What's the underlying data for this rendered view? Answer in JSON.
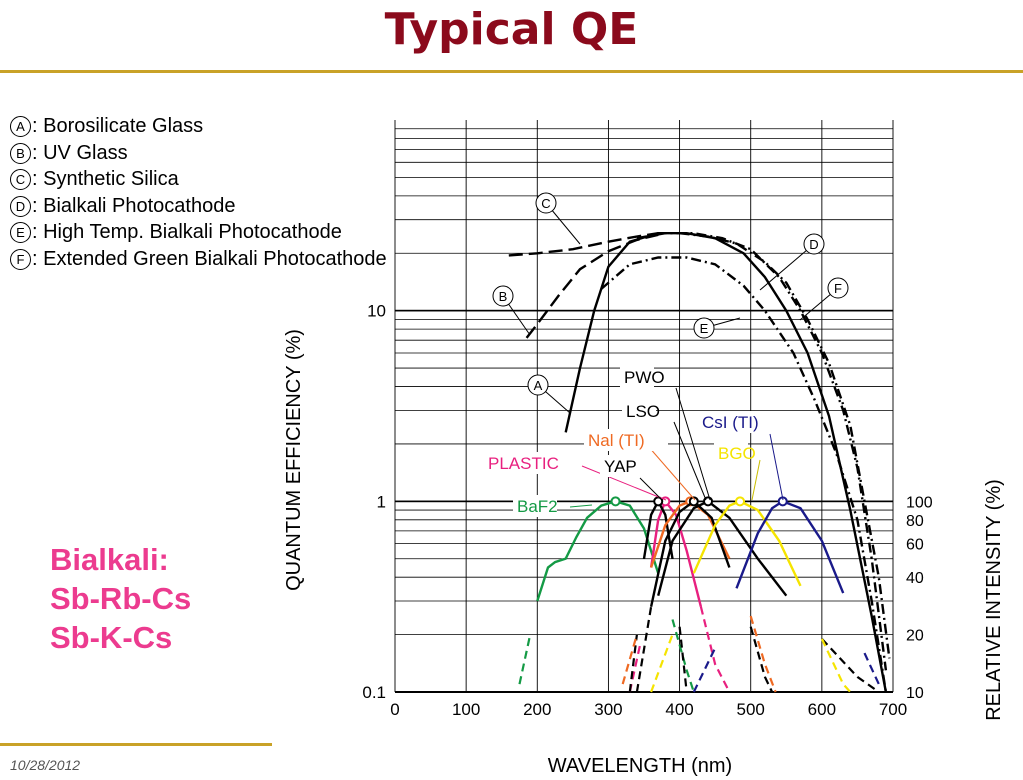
{
  "slide": {
    "title": "Typical QE",
    "date": "10/28/2012",
    "photocathode_lines": [
      "Bialkali:",
      "Sb-Rb-Cs",
      "Sb-K-Cs"
    ]
  },
  "legend": [
    {
      "mark": "A",
      "text": ": Borosilicate Glass"
    },
    {
      "mark": "B",
      "text": ": UV Glass"
    },
    {
      "mark": "C",
      "text": ": Synthetic Silica"
    },
    {
      "mark": "D",
      "text": ": Bialkali Photocathode"
    },
    {
      "mark": "E",
      "text": ": High Temp. Bialkali Photocathode"
    },
    {
      "mark": "F",
      "text": ": Extended Green Bialkali Photocathode"
    }
  ],
  "chart_data": {
    "type": "line",
    "xlabel": "WAVELENGTH (nm)",
    "ylabel": "QUANTUM EFFICIENCY (%)",
    "y2label": "RELATIVE INTENSITY (%)",
    "xlim": [
      0,
      700
    ],
    "ylim": [
      0.1,
      100
    ],
    "yscale": "log",
    "x_ticks": [
      0,
      100,
      200,
      300,
      400,
      500,
      600,
      700
    ],
    "y_tick_labels": [
      "0.1",
      "1",
      "10"
    ],
    "y2_tick_labels": [
      "10",
      "20",
      "40",
      "60",
      "80",
      "100"
    ],
    "grid": true,
    "qe_curves": [
      {
        "label": "A",
        "style": "solid",
        "points": [
          [
            240,
            2.3
          ],
          [
            260,
            5
          ],
          [
            280,
            10
          ],
          [
            300,
            17
          ],
          [
            330,
            23
          ],
          [
            370,
            25.5
          ],
          [
            410,
            25.5
          ],
          [
            450,
            24
          ],
          [
            490,
            20
          ],
          [
            520,
            15
          ],
          [
            550,
            10
          ],
          [
            580,
            6
          ],
          [
            610,
            2.8
          ],
          [
            640,
            0.9
          ],
          [
            670,
            0.25
          ],
          [
            690,
            0.1
          ]
        ]
      },
      {
        "label": "B",
        "style": "long-dash",
        "points": [
          [
            185,
            7.2
          ],
          [
            200,
            8.5
          ],
          [
            230,
            12
          ],
          [
            260,
            16.5
          ],
          [
            300,
            20.5
          ],
          [
            340,
            23.5
          ],
          [
            370,
            25
          ]
        ]
      },
      {
        "label": "C",
        "style": "long-dash",
        "points": [
          [
            160,
            19.5
          ],
          [
            200,
            20
          ],
          [
            250,
            21
          ],
          [
            300,
            23
          ],
          [
            340,
            24.5
          ],
          [
            370,
            25.5
          ]
        ]
      },
      {
        "label": "D",
        "style": "dash-dot",
        "points": [
          [
            340,
            24
          ],
          [
            380,
            25.5
          ],
          [
            420,
            25.5
          ],
          [
            460,
            24
          ],
          [
            500,
            21
          ],
          [
            540,
            15
          ],
          [
            570,
            10
          ],
          [
            600,
            6
          ],
          [
            630,
            3
          ],
          [
            650,
            1.5
          ],
          [
            670,
            0.5
          ],
          [
            690,
            0.13
          ]
        ]
      },
      {
        "label": "E",
        "style": "dash-dot",
        "points": [
          [
            290,
            13
          ],
          [
            330,
            17.5
          ],
          [
            370,
            19
          ],
          [
            410,
            19
          ],
          [
            450,
            17.5
          ],
          [
            490,
            13.5
          ],
          [
            520,
            10
          ],
          [
            560,
            6
          ],
          [
            590,
            3.4
          ],
          [
            620,
            1.8
          ],
          [
            650,
            0.8
          ],
          [
            670,
            0.3
          ],
          [
            690,
            0.1
          ]
        ]
      },
      {
        "label": "F",
        "style": "dash-dot",
        "points": [
          [
            400,
            25.5
          ],
          [
            440,
            24.5
          ],
          [
            480,
            22.5
          ],
          [
            520,
            18
          ],
          [
            550,
            14
          ],
          [
            580,
            9
          ],
          [
            610,
            5.3
          ],
          [
            640,
            2.5
          ],
          [
            660,
            1
          ],
          [
            680,
            0.4
          ],
          [
            695,
            0.15
          ]
        ]
      }
    ],
    "scintillators": [
      {
        "name": "BaF2",
        "color": "#149a45",
        "peak_nm": 310,
        "points": [
          [
            175,
            0.11
          ],
          [
            190,
            0.2
          ],
          [
            200,
            0.3
          ],
          [
            215,
            0.45
          ],
          [
            225,
            0.48
          ],
          [
            240,
            0.5
          ],
          [
            255,
            0.65
          ],
          [
            270,
            0.82
          ],
          [
            290,
            0.95
          ],
          [
            310,
            1
          ],
          [
            330,
            0.95
          ],
          [
            350,
            0.72
          ],
          [
            370,
            0.42
          ],
          [
            390,
            0.24
          ],
          [
            410,
            0.13
          ],
          [
            420,
            0.1
          ]
        ]
      },
      {
        "name": "PLASTIC",
        "color": "#e8207f",
        "peak_nm": 380,
        "points": [
          [
            330,
            0.1
          ],
          [
            345,
            0.18
          ],
          [
            360,
            0.45
          ],
          [
            370,
            0.8
          ],
          [
            380,
            1
          ],
          [
            395,
            0.85
          ],
          [
            410,
            0.55
          ],
          [
            430,
            0.28
          ],
          [
            450,
            0.14
          ],
          [
            470,
            0.1
          ]
        ]
      },
      {
        "name": "YAP",
        "color": "#000000",
        "peak_nm": 370,
        "points": [
          [
            330,
            0.1
          ],
          [
            340,
            0.2
          ],
          [
            350,
            0.5
          ],
          [
            360,
            0.85
          ],
          [
            370,
            1
          ],
          [
            380,
            0.85
          ],
          [
            390,
            0.5
          ],
          [
            400,
            0.22
          ],
          [
            410,
            0.1
          ]
        ]
      },
      {
        "name": "Nal (TI)",
        "color": "#ef6a23",
        "peak_nm": 415,
        "points": [
          [
            320,
            0.11
          ],
          [
            340,
            0.2
          ],
          [
            360,
            0.45
          ],
          [
            380,
            0.75
          ],
          [
            400,
            0.95
          ],
          [
            415,
            1
          ],
          [
            440,
            0.85
          ],
          [
            470,
            0.5
          ],
          [
            500,
            0.25
          ],
          [
            520,
            0.14
          ],
          [
            535,
            0.1
          ]
        ]
      },
      {
        "name": "LSO",
        "color": "#000000",
        "peak_nm": 420,
        "points": [
          [
            340,
            0.1
          ],
          [
            360,
            0.28
          ],
          [
            380,
            0.62
          ],
          [
            400,
            0.88
          ],
          [
            420,
            1
          ],
          [
            445,
            0.82
          ],
          [
            470,
            0.45
          ],
          [
            500,
            0.22
          ],
          [
            520,
            0.12
          ],
          [
            530,
            0.1
          ]
        ]
      },
      {
        "name": "PWO",
        "color": "#000000",
        "peak_nm": 440,
        "points": [
          [
            350,
            0.13
          ],
          [
            370,
            0.32
          ],
          [
            390,
            0.62
          ],
          [
            420,
            0.92
          ],
          [
            440,
            1
          ],
          [
            470,
            0.82
          ],
          [
            510,
            0.5
          ],
          [
            550,
            0.32
          ],
          [
            600,
            0.19
          ],
          [
            650,
            0.12
          ],
          [
            680,
            0.1
          ]
        ]
      },
      {
        "name": "BGO",
        "color": "#f5e400",
        "peak_nm": 485,
        "points": [
          [
            360,
            0.1
          ],
          [
            390,
            0.2
          ],
          [
            420,
            0.42
          ],
          [
            450,
            0.75
          ],
          [
            470,
            0.95
          ],
          [
            485,
            1
          ],
          [
            510,
            0.9
          ],
          [
            540,
            0.62
          ],
          [
            570,
            0.36
          ],
          [
            600,
            0.19
          ],
          [
            630,
            0.11
          ],
          [
            640,
            0.1
          ]
        ]
      },
      {
        "name": "CsI (TI)",
        "color": "#1a1a8a",
        "peak_nm": 545,
        "points": [
          [
            420,
            0.1
          ],
          [
            450,
            0.17
          ],
          [
            480,
            0.35
          ],
          [
            510,
            0.68
          ],
          [
            530,
            0.92
          ],
          [
            545,
            1
          ],
          [
            570,
            0.92
          ],
          [
            600,
            0.62
          ],
          [
            630,
            0.33
          ],
          [
            660,
            0.16
          ],
          [
            680,
            0.11
          ]
        ]
      }
    ]
  }
}
